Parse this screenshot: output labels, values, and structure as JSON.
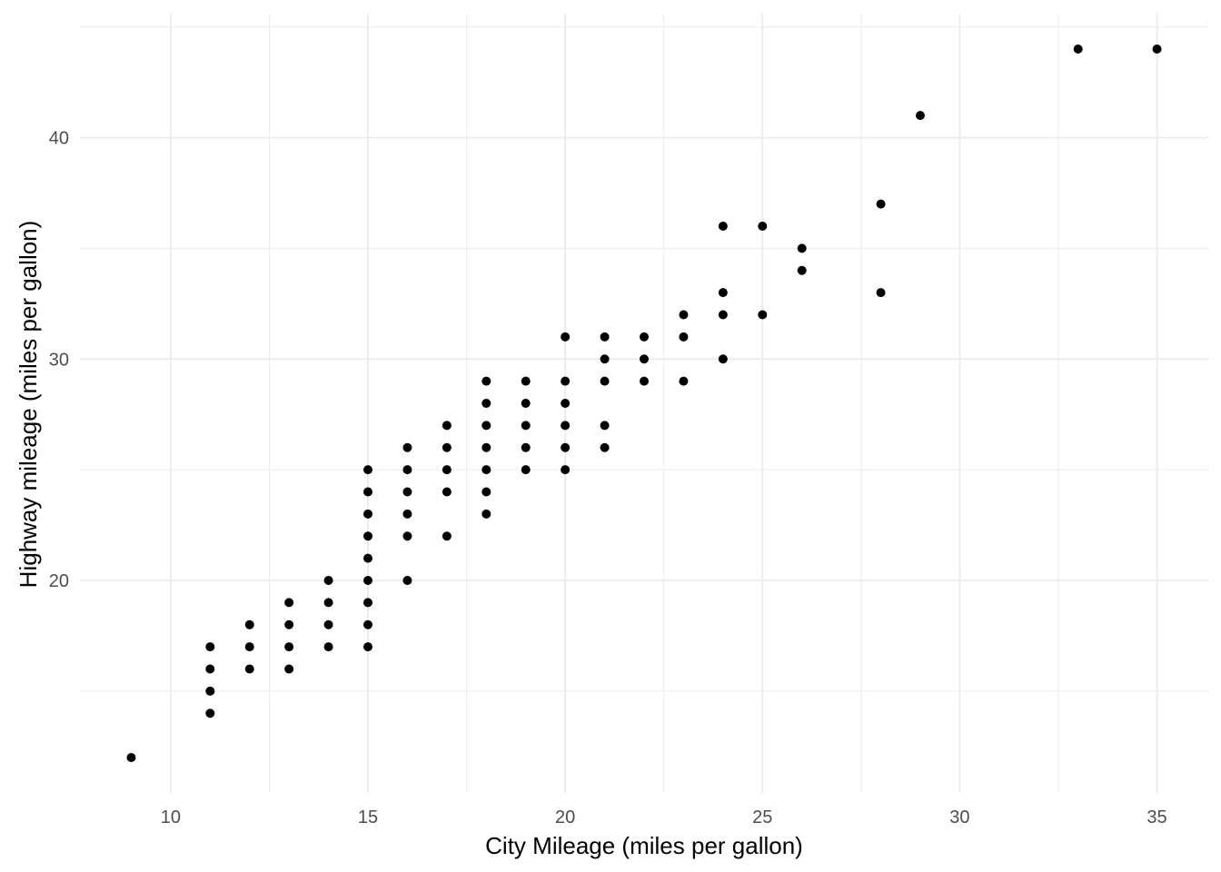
{
  "chart_data": {
    "type": "scatter",
    "title": "",
    "xlabel": "City Mileage (miles per gallon)",
    "ylabel": "Highway mileage (miles per gallon)",
    "xlim": [
      7.7,
      36.3
    ],
    "ylim": [
      10.4,
      45.6
    ],
    "x_ticks": [
      10,
      15,
      20,
      25,
      30,
      35
    ],
    "x_tick_labels": [
      "10",
      "15",
      "20",
      "25",
      "30",
      "35"
    ],
    "y_ticks": [
      20,
      30,
      40
    ],
    "y_tick_labels": [
      "20",
      "30",
      "40"
    ],
    "x_minor_grid": [
      12.5,
      17.5,
      22.5,
      27.5,
      32.5
    ],
    "y_minor_grid": [
      15,
      25,
      35,
      45
    ],
    "grid": true,
    "legend": "none",
    "point_color": "#000000",
    "grid_color": "#ebebeb",
    "points": [
      [
        9,
        12
      ],
      [
        11,
        14
      ],
      [
        11,
        15
      ],
      [
        11,
        16
      ],
      [
        11,
        17
      ],
      [
        12,
        16
      ],
      [
        12,
        17
      ],
      [
        12,
        18
      ],
      [
        13,
        16
      ],
      [
        13,
        17
      ],
      [
        13,
        18
      ],
      [
        13,
        19
      ],
      [
        14,
        17
      ],
      [
        14,
        18
      ],
      [
        14,
        19
      ],
      [
        14,
        20
      ],
      [
        15,
        17
      ],
      [
        15,
        18
      ],
      [
        15,
        19
      ],
      [
        15,
        20
      ],
      [
        15,
        21
      ],
      [
        15,
        22
      ],
      [
        15,
        23
      ],
      [
        15,
        24
      ],
      [
        15,
        25
      ],
      [
        16,
        20
      ],
      [
        16,
        22
      ],
      [
        16,
        23
      ],
      [
        16,
        24
      ],
      [
        16,
        25
      ],
      [
        16,
        26
      ],
      [
        17,
        22
      ],
      [
        17,
        24
      ],
      [
        17,
        25
      ],
      [
        17,
        26
      ],
      [
        17,
        27
      ],
      [
        18,
        23
      ],
      [
        18,
        24
      ],
      [
        18,
        25
      ],
      [
        18,
        26
      ],
      [
        18,
        27
      ],
      [
        18,
        28
      ],
      [
        18,
        29
      ],
      [
        19,
        25
      ],
      [
        19,
        26
      ],
      [
        19,
        27
      ],
      [
        19,
        28
      ],
      [
        19,
        29
      ],
      [
        20,
        25
      ],
      [
        20,
        26
      ],
      [
        20,
        27
      ],
      [
        20,
        28
      ],
      [
        20,
        29
      ],
      [
        20,
        31
      ],
      [
        21,
        26
      ],
      [
        21,
        27
      ],
      [
        21,
        29
      ],
      [
        21,
        30
      ],
      [
        21,
        31
      ],
      [
        22,
        29
      ],
      [
        22,
        30
      ],
      [
        22,
        31
      ],
      [
        23,
        29
      ],
      [
        23,
        31
      ],
      [
        23,
        32
      ],
      [
        24,
        30
      ],
      [
        24,
        32
      ],
      [
        24,
        33
      ],
      [
        24,
        36
      ],
      [
        25,
        32
      ],
      [
        25,
        36
      ],
      [
        26,
        34
      ],
      [
        26,
        35
      ],
      [
        28,
        33
      ],
      [
        28,
        37
      ],
      [
        29,
        41
      ],
      [
        33,
        44
      ],
      [
        35,
        44
      ]
    ]
  }
}
